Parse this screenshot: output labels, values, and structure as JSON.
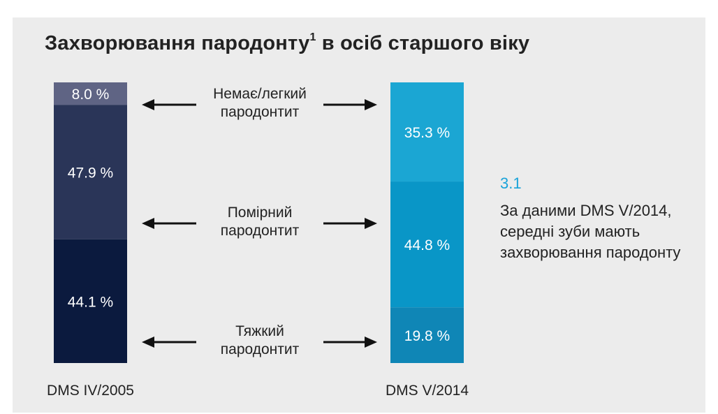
{
  "title_main": "Захворювання пародонту",
  "title_sup": "1",
  "title_rest": " в осіб старшого віку",
  "chart_data": {
    "type": "bar",
    "stacked": true,
    "categories": [
      "DMS IV/2005",
      "DMS V/2014"
    ],
    "series": [
      {
        "name": "Немає/легкий пародонтит",
        "values": [
          8.0,
          35.3
        ],
        "labels": [
          "8.0 %",
          "35.3 %"
        ],
        "colors": [
          "#5f6484",
          "#1ba6d3"
        ]
      },
      {
        "name": "Помірний пародонтит",
        "values": [
          47.9,
          44.8
        ],
        "labels": [
          "47.9 %",
          "44.8 %"
        ],
        "colors": [
          "#2a3558",
          "#0996c7"
        ]
      },
      {
        "name": "Тяжкий пародонтит",
        "values": [
          44.1,
          19.8
        ],
        "labels": [
          "44.1 %",
          "19.8 %"
        ],
        "colors": [
          "#0b1a3e",
          "#0f86b6"
        ]
      }
    ],
    "arrow_labels": [
      [
        "Немає/легкий",
        "пародонтит"
      ],
      [
        "Помірний",
        "пародонтит"
      ],
      [
        "Тяжкий",
        "пародонтит"
      ]
    ]
  },
  "callout": {
    "number": "3.1",
    "text": "За даними DMS V/2014, середні зуби мають захворювання пародонту"
  }
}
